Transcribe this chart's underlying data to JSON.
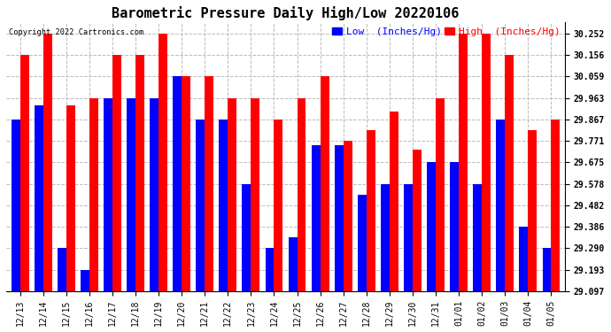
{
  "title": "Barometric Pressure Daily High/Low 20220106",
  "copyright": "Copyright 2022 Cartronics.com",
  "legend_low": "Low  (Inches/Hg)",
  "legend_high": "High  (Inches/Hg)",
  "categories": [
    "12/13",
    "12/14",
    "12/15",
    "12/16",
    "12/17",
    "12/18",
    "12/19",
    "12/20",
    "12/21",
    "12/22",
    "12/23",
    "12/24",
    "12/25",
    "12/26",
    "12/27",
    "12/28",
    "12/29",
    "12/30",
    "12/31",
    "01/01",
    "01/02",
    "01/03",
    "01/04",
    "01/05"
  ],
  "low": [
    29.867,
    29.93,
    29.29,
    29.193,
    29.963,
    29.963,
    29.963,
    30.059,
    29.867,
    29.867,
    29.578,
    29.29,
    29.338,
    29.752,
    29.752,
    29.53,
    29.578,
    29.578,
    29.675,
    29.675,
    29.578,
    29.867,
    29.386,
    29.29
  ],
  "high": [
    30.155,
    30.252,
    29.93,
    29.963,
    30.155,
    30.155,
    30.252,
    30.059,
    30.059,
    29.963,
    29.963,
    29.867,
    29.963,
    30.059,
    29.771,
    29.82,
    29.9,
    29.73,
    29.963,
    30.252,
    30.252,
    30.155,
    29.82,
    29.867
  ],
  "ymin": 29.097,
  "ymax": 30.3,
  "yticks": [
    29.097,
    29.193,
    29.29,
    29.386,
    29.482,
    29.578,
    29.675,
    29.771,
    29.867,
    29.963,
    30.059,
    30.156,
    30.252
  ],
  "bar_width": 0.38,
  "low_color": "#0000ff",
  "high_color": "#ff0000",
  "bg_color": "#ffffff",
  "grid_color": "#bbbbbb",
  "title_fontsize": 11,
  "tick_fontsize": 7,
  "legend_fontsize": 8
}
